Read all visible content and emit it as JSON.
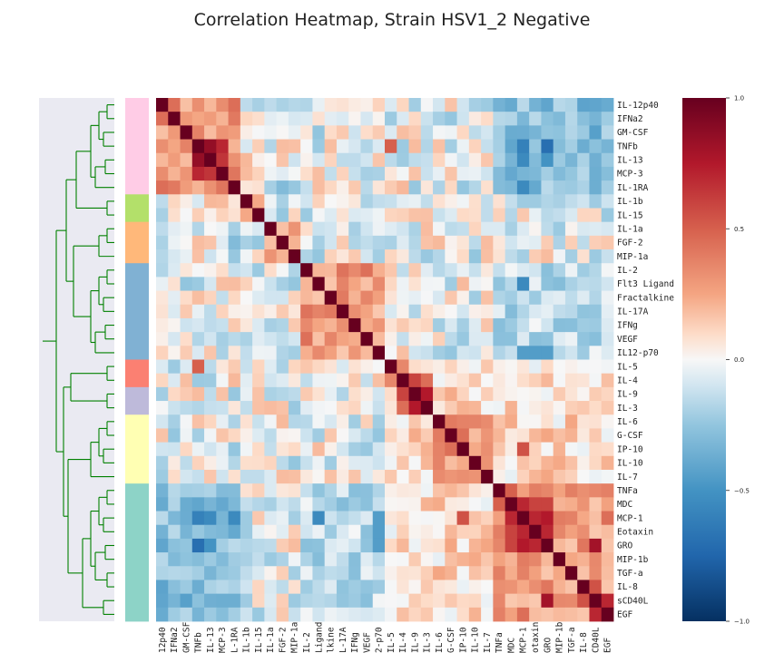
{
  "chart_data": {
    "type": "heatmap",
    "title": "Correlation Heatmap, Strain HSV1_2 Negative",
    "labels": [
      "IL-12p40",
      "IFNa2",
      "GM-CSF",
      "TNFb",
      "IL-13",
      "MCP-3",
      "IL-1RA",
      "IL-1b",
      "IL-15",
      "IL-1a",
      "FGF-2",
      "MIP-1a",
      "IL-2",
      "Flt3 Ligand",
      "Fractalkine",
      "IL-17A",
      "IFNg",
      "VEGF",
      "IL12-p70",
      "IL-5",
      "IL-4",
      "IL-9",
      "IL-3",
      "IL-6",
      "G-CSF",
      "IP-10",
      "IL-10",
      "IL-7",
      "TNFa",
      "MDC",
      "MCP-1",
      "Eotaxin",
      "GRO",
      "MIP-1b",
      "TGF-a",
      "IL-8",
      "sCD40L",
      "EGF"
    ],
    "x_tick_labels": [
      "12p40",
      "IFNa2",
      "GM-CSF",
      "TNFb",
      "IL-13",
      "MCP-3",
      "L-1RA",
      "IL-1b",
      "IL-15",
      "IL-1a",
      "FGF-2",
      "MIP-1a",
      "IL-2",
      "Ligand",
      "lkine",
      "L-17A",
      "IFNg",
      "VEGF",
      "2-p70",
      "IL-5",
      "IL-4",
      "IL-9",
      "IL-3",
      "IL-6",
      "G-CSF",
      "IP-10",
      "IL-10",
      "IL-7",
      "TNFa",
      "MDC",
      "MCP-1",
      "otaxin",
      "GRO",
      "MIP-1b",
      "TGF-a",
      "IL-8",
      "CD40L",
      "EGF"
    ],
    "clusters": [
      {
        "size": 7,
        "color": "#ffcce6"
      },
      {
        "size": 2,
        "color": "#b3e06a"
      },
      {
        "size": 3,
        "color": "#ffb87a"
      },
      {
        "size": 7,
        "color": "#80b1d3"
      },
      {
        "size": 2,
        "color": "#fb8072"
      },
      {
        "size": 2,
        "color": "#bebada"
      },
      {
        "size": 5,
        "color": "#ffffb3"
      },
      {
        "size": 10,
        "color": "#8dd3c7"
      }
    ],
    "colorbar": {
      "min": -1.0,
      "max": 1.0,
      "ticks": [
        "1.0",
        "0.5",
        "0.0",
        "−0.5",
        "−1.0"
      ]
    },
    "colors": {
      "dendrogram": "#008000",
      "background": "#eaeaf2"
    }
  }
}
